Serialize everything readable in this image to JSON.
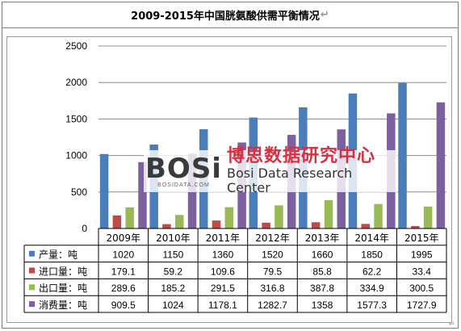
{
  "title": "2009-2015年中国胱氨酸供需平衡情况",
  "title_mark": "↵",
  "bottom_mark": "↵",
  "watermark": {
    "logo": "BOSi",
    "logo_small": "BOSIDATA.COM",
    "cn": "博思数据研究中心",
    "en": "Bosi Data Research Center"
  },
  "chart_data": {
    "type": "bar",
    "categories": [
      "2009年",
      "2010年",
      "2011年",
      "2012年",
      "2013年",
      "2014年",
      "2015年"
    ],
    "series": [
      {
        "name": "产量：吨",
        "color": "#4a7ebb",
        "values": [
          1020,
          1150,
          1360,
          1520,
          1660,
          1850,
          1995
        ],
        "labels": [
          "1020",
          "1150",
          "1360",
          "1520",
          "1660",
          "1850",
          "1995"
        ]
      },
      {
        "name": "进口量：吨",
        "color": "#be4b48",
        "values": [
          179.1,
          59.2,
          109.6,
          79.5,
          85.8,
          62.2,
          33.4
        ],
        "labels": [
          "179.1",
          "59.2",
          "109.6",
          "79.5",
          "85.8",
          "62.2",
          "33.4"
        ]
      },
      {
        "name": "出口量：吨",
        "color": "#98b954",
        "values": [
          289.6,
          185.2,
          291.5,
          316.8,
          387.8,
          334.9,
          300.5
        ],
        "labels": [
          "289.6",
          "185.2",
          "291.5",
          "316.8",
          "387.8",
          "334.9",
          "300.5"
        ]
      },
      {
        "name": "消费量：吨",
        "color": "#7d60a0",
        "values": [
          909.5,
          1024,
          1178.1,
          1282.7,
          1358,
          1577.3,
          1727.9
        ],
        "labels": [
          "909.5",
          "1024",
          "1178.1",
          "1282.7",
          "1358",
          "1577.3",
          "1727.9"
        ]
      }
    ],
    "ylim": [
      0,
      2500
    ],
    "yticks": [
      "0",
      "500",
      "1000",
      "1500",
      "2000",
      "2500"
    ],
    "grid": true,
    "legend": "data-table"
  }
}
